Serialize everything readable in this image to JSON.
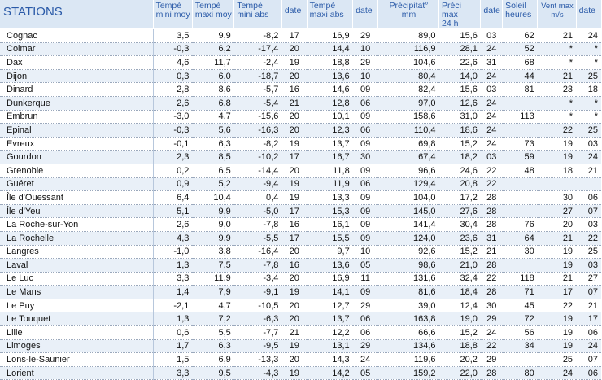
{
  "headers": {
    "stations": "STATIONS",
    "tempe_mini_moy": [
      "Tempé",
      "mini moy"
    ],
    "tempe_maxi_moy": [
      "Tempé",
      "maxi moy"
    ],
    "tempe_mini_abs": [
      "Tempé",
      "mini abs"
    ],
    "date1": "date",
    "tempe_maxi_abs": [
      "Tempé",
      "maxi abs"
    ],
    "date2": "date",
    "precipitat": [
      "Précipitat°",
      "mm"
    ],
    "preci_max": [
      "Préci max",
      "24 h"
    ],
    "date3": "date",
    "soleil": [
      "Soleil",
      "heures"
    ],
    "vent_max": [
      "Vent max",
      "m/s"
    ],
    "date4": "date"
  },
  "rows": [
    [
      "Cognac",
      "3,5",
      "9,9",
      "-8,2",
      "17",
      "16,9",
      "29",
      "89,0",
      "15,6",
      "03",
      "62",
      "21",
      "24"
    ],
    [
      "Colmar",
      "-0,3",
      "6,2",
      "-17,4",
      "20",
      "14,4",
      "10",
      "116,9",
      "28,1",
      "24",
      "52",
      "*",
      "*"
    ],
    [
      "Dax",
      "4,6",
      "11,7",
      "-2,4",
      "19",
      "18,8",
      "29",
      "104,6",
      "22,6",
      "31",
      "68",
      "*",
      "*"
    ],
    [
      "Dijon",
      "0,3",
      "6,0",
      "-18,7",
      "20",
      "13,6",
      "10",
      "80,4",
      "14,0",
      "24",
      "44",
      "21",
      "25"
    ],
    [
      "Dinard",
      "2,8",
      "8,6",
      "-5,7",
      "16",
      "14,6",
      "09",
      "82,4",
      "15,6",
      "03",
      "81",
      "23",
      "18"
    ],
    [
      "Dunkerque",
      "2,6",
      "6,8",
      "-5,4",
      "21",
      "12,8",
      "06",
      "97,0",
      "12,6",
      "24",
      "",
      "*",
      "*"
    ],
    [
      "Embrun",
      "-3,0",
      "4,7",
      "-15,6",
      "20",
      "10,1",
      "09",
      "158,6",
      "31,0",
      "24",
      "113",
      "*",
      "*"
    ],
    [
      "Epinal",
      "-0,3",
      "5,6",
      "-16,3",
      "20",
      "12,3",
      "06",
      "110,4",
      "18,6",
      "24",
      "",
      "22",
      "25"
    ],
    [
      "Evreux",
      "-0,1",
      "6,3",
      "-8,2",
      "19",
      "13,7",
      "09",
      "69,8",
      "15,2",
      "24",
      "73",
      "19",
      "03"
    ],
    [
      "Gourdon",
      "2,3",
      "8,5",
      "-10,2",
      "17",
      "16,7",
      "30",
      "67,4",
      "18,2",
      "03",
      "59",
      "19",
      "24"
    ],
    [
      "Grenoble",
      "0,2",
      "6,5",
      "-14,4",
      "20",
      "11,8",
      "09",
      "96,6",
      "24,6",
      "22",
      "48",
      "18",
      "21"
    ],
    [
      "Guéret",
      "0,9",
      "5,2",
      "-9,4",
      "19",
      "11,9",
      "06",
      "129,4",
      "20,8",
      "22",
      "",
      "",
      ""
    ],
    [
      "Île d'Ouessant",
      "6,4",
      "10,4",
      "0,4",
      "19",
      "13,3",
      "09",
      "104,0",
      "17,2",
      "28",
      "",
      "30",
      "06"
    ],
    [
      "Île d'Yeu",
      "5,1",
      "9,9",
      "-5,0",
      "17",
      "15,3",
      "09",
      "145,0",
      "27,6",
      "28",
      "",
      "27",
      "07"
    ],
    [
      "La Roche-sur-Yon",
      "2,6",
      "9,0",
      "-7,8",
      "16",
      "16,1",
      "09",
      "141,4",
      "30,4",
      "28",
      "76",
      "20",
      "03"
    ],
    [
      "La Rochelle",
      "4,3",
      "9,9",
      "-5,5",
      "17",
      "15,5",
      "09",
      "124,0",
      "23,6",
      "31",
      "64",
      "21",
      "22"
    ],
    [
      "Langres",
      "-1,0",
      "3,8",
      "-16,4",
      "20",
      "9,7",
      "10",
      "92,6",
      "15,2",
      "21",
      "30",
      "19",
      "25"
    ],
    [
      "Laval",
      "1,3",
      "7,5",
      "-7,8",
      "16",
      "13,6",
      "05",
      "98,6",
      "21,0",
      "28",
      "",
      "19",
      "03"
    ],
    [
      "Le Luc",
      "3,3",
      "11,9",
      "-3,4",
      "20",
      "16,9",
      "11",
      "131,6",
      "32,4",
      "22",
      "118",
      "21",
      "27"
    ],
    [
      "Le Mans",
      "1,4",
      "7,9",
      "-9,1",
      "19",
      "14,1",
      "09",
      "81,6",
      "18,4",
      "28",
      "71",
      "17",
      "07"
    ],
    [
      "Le Puy",
      "-2,1",
      "4,7",
      "-10,5",
      "20",
      "12,7",
      "29",
      "39,0",
      "12,4",
      "30",
      "45",
      "22",
      "21"
    ],
    [
      "Le Touquet",
      "1,3",
      "7,2",
      "-6,3",
      "20",
      "13,7",
      "06",
      "163,8",
      "19,0",
      "29",
      "72",
      "19",
      "17"
    ],
    [
      "Lille",
      "0,6",
      "5,5",
      "-7,7",
      "21",
      "12,2",
      "06",
      "66,6",
      "15,2",
      "24",
      "56",
      "19",
      "06"
    ],
    [
      "Limoges",
      "1,7",
      "6,3",
      "-9,5",
      "19",
      "13,1",
      "29",
      "134,6",
      "18,8",
      "22",
      "34",
      "19",
      "24"
    ],
    [
      "Lons-le-Saunier",
      "1,5",
      "6,9",
      "-13,3",
      "20",
      "14,3",
      "24",
      "119,6",
      "20,2",
      "29",
      "",
      "25",
      "07"
    ],
    [
      "Lorient",
      "3,3",
      "9,5",
      "-4,3",
      "19",
      "14,2",
      "05",
      "159,2",
      "22,0",
      "28",
      "80",
      "24",
      "06"
    ]
  ]
}
